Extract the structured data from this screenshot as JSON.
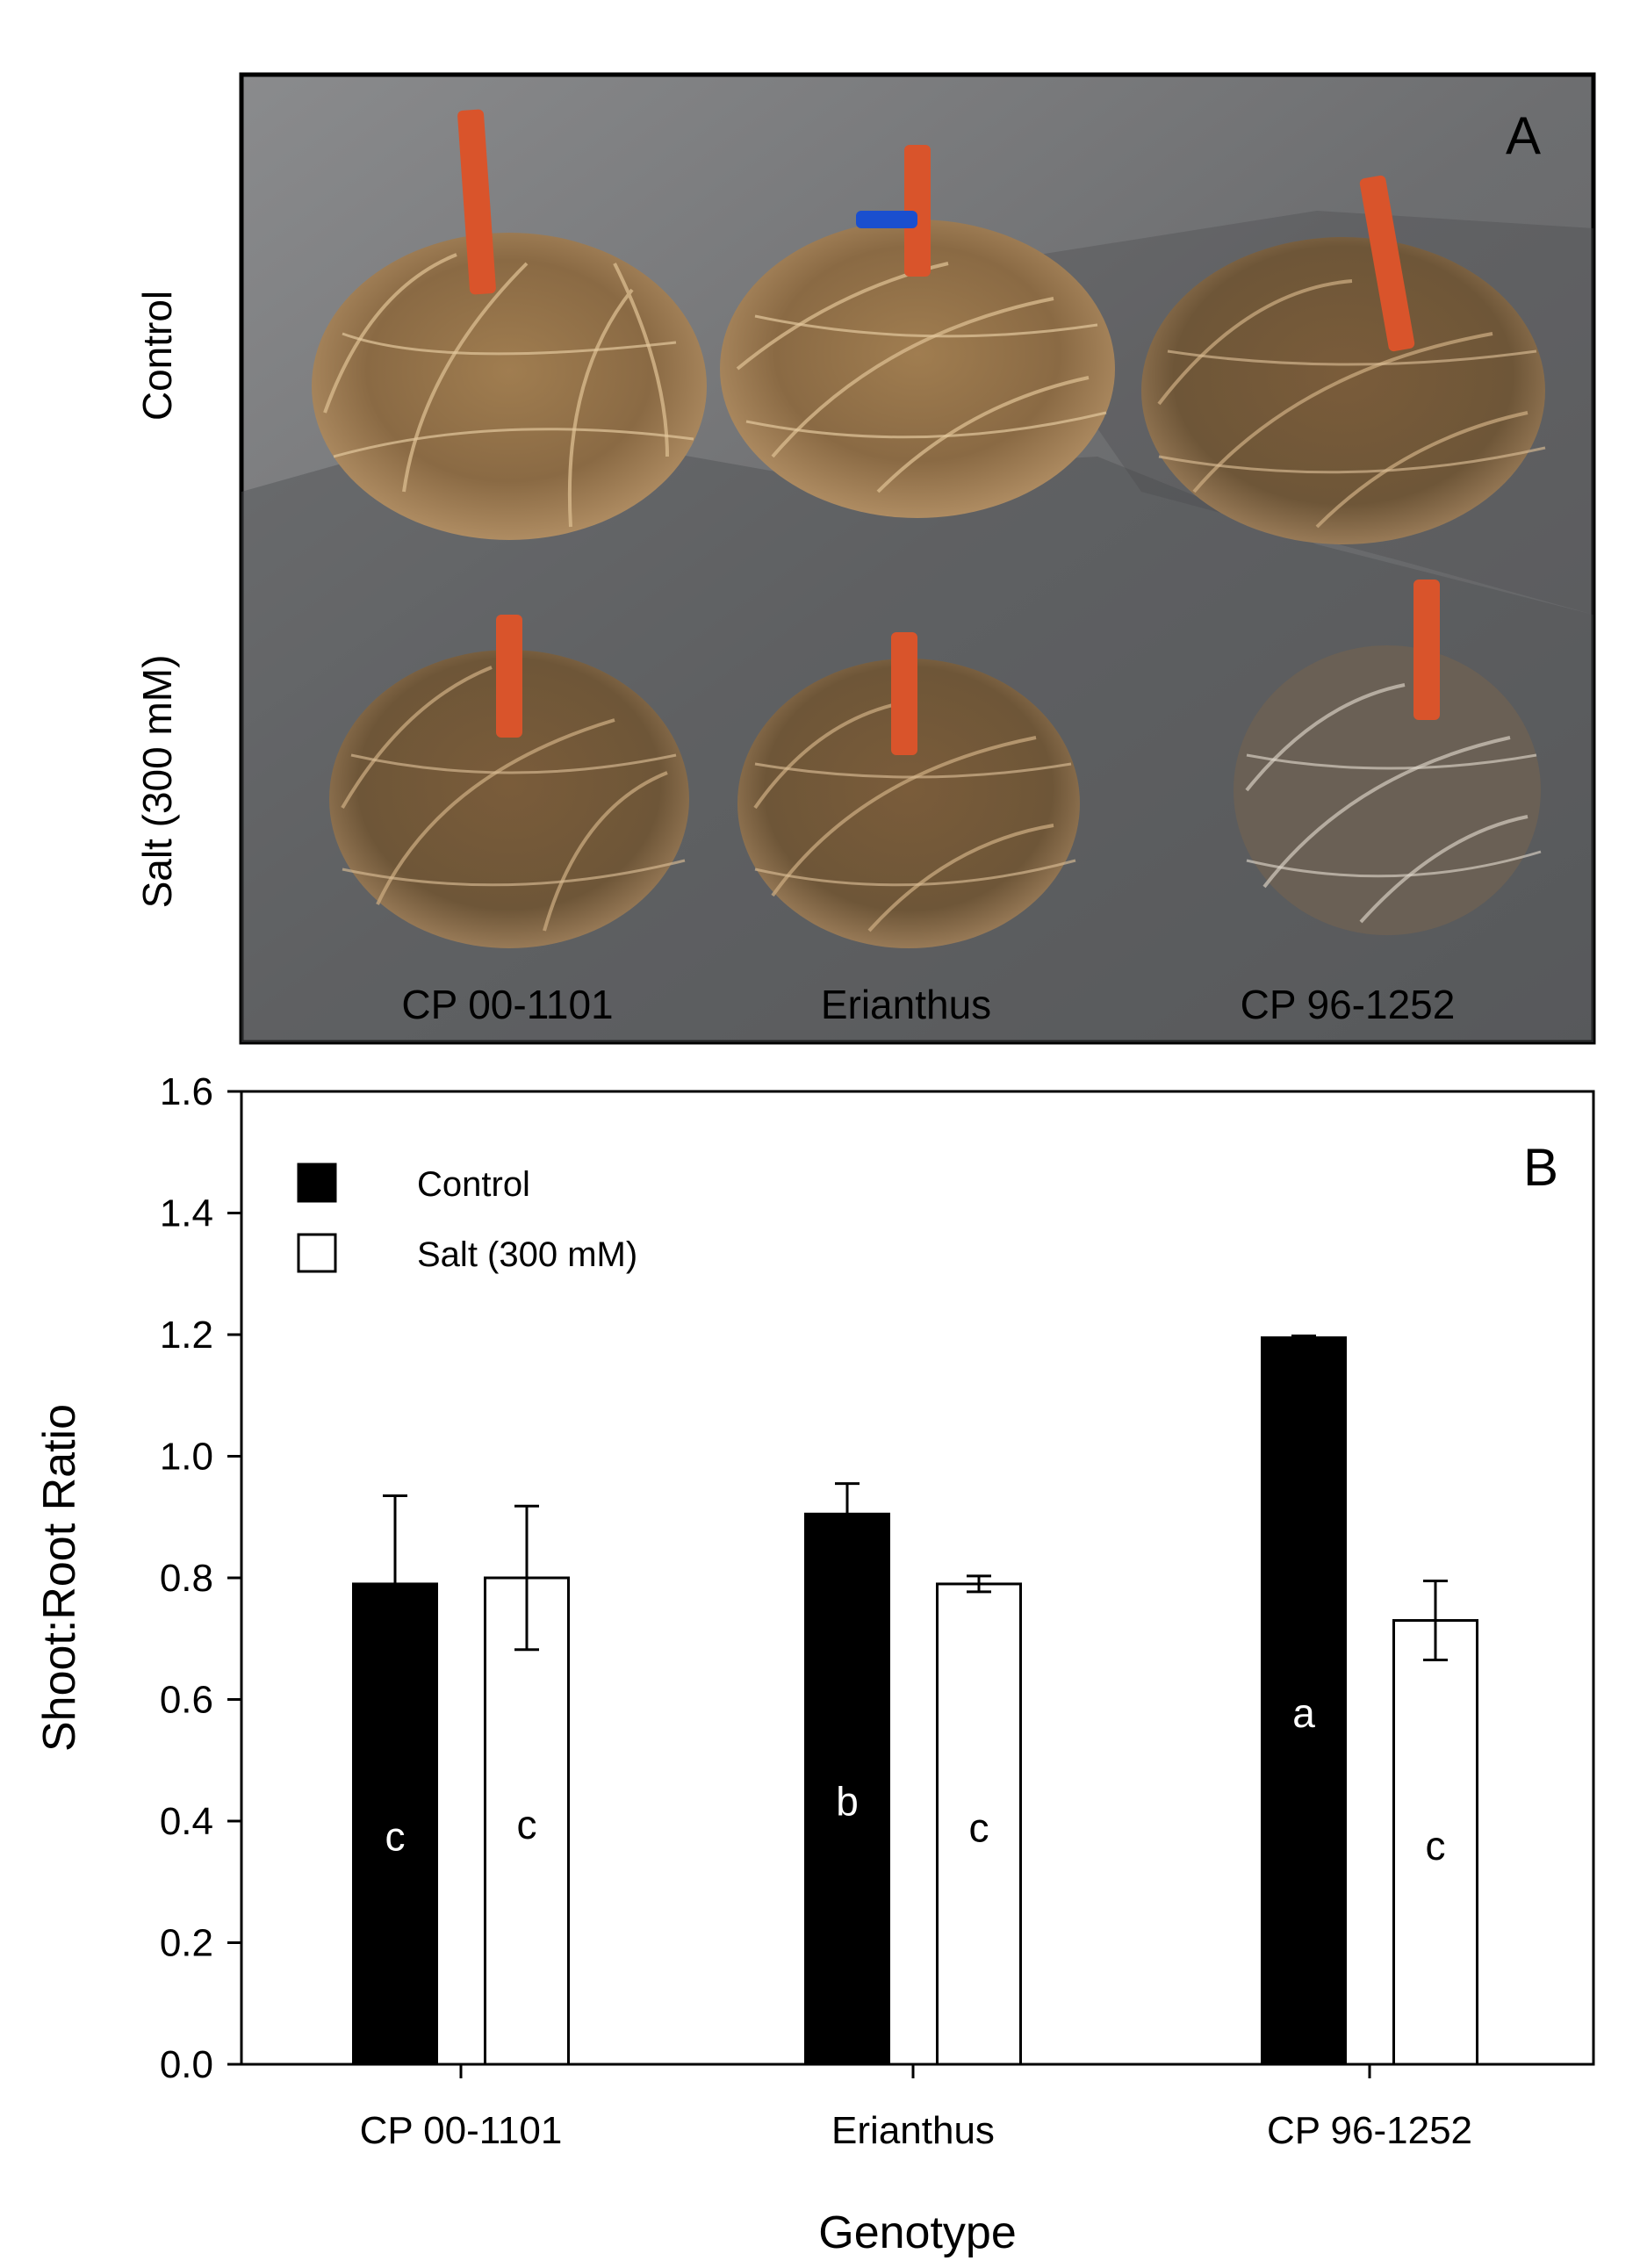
{
  "panel_a": {
    "panel_label": "A",
    "row_labels": [
      "Control",
      "Salt (300 mM)"
    ],
    "genotype_labels": [
      "CP 00-1101",
      "Erianthus",
      "CP 96-1252"
    ]
  },
  "panel_b": {
    "panel_label": "B"
  },
  "colors": {
    "control": "#000000",
    "salt": "#ffffff",
    "photo_background": "#6f7072",
    "root_mass": "#8a6a44",
    "root_highlight": "#d7b98c",
    "stake": "#d9542b"
  },
  "chart_data": {
    "type": "bar",
    "xlabel": "Genotype",
    "ylabel": "Shoot:Root Ratio",
    "categories": [
      "CP 00-1101",
      "Erianthus",
      "CP 96-1252"
    ],
    "ylim": [
      0,
      1.6
    ],
    "yticks": [
      "0.0",
      "0.2",
      "0.4",
      "0.6",
      "0.8",
      "1.0",
      "1.2",
      "1.4",
      "1.6"
    ],
    "legend_position": "top-left",
    "grid": false,
    "series": [
      {
        "name": "Control",
        "values": [
          0.79,
          0.905,
          1.195
        ],
        "errors": [
          0.145,
          0.05,
          0.003
        ],
        "letters": [
          "c",
          "b",
          "a"
        ]
      },
      {
        "name": "Salt (300 mM)",
        "values": [
          0.8,
          0.79,
          0.73
        ],
        "errors": [
          0.118,
          0.013,
          0.065
        ],
        "letters": [
          "c",
          "c",
          "c"
        ]
      }
    ]
  }
}
